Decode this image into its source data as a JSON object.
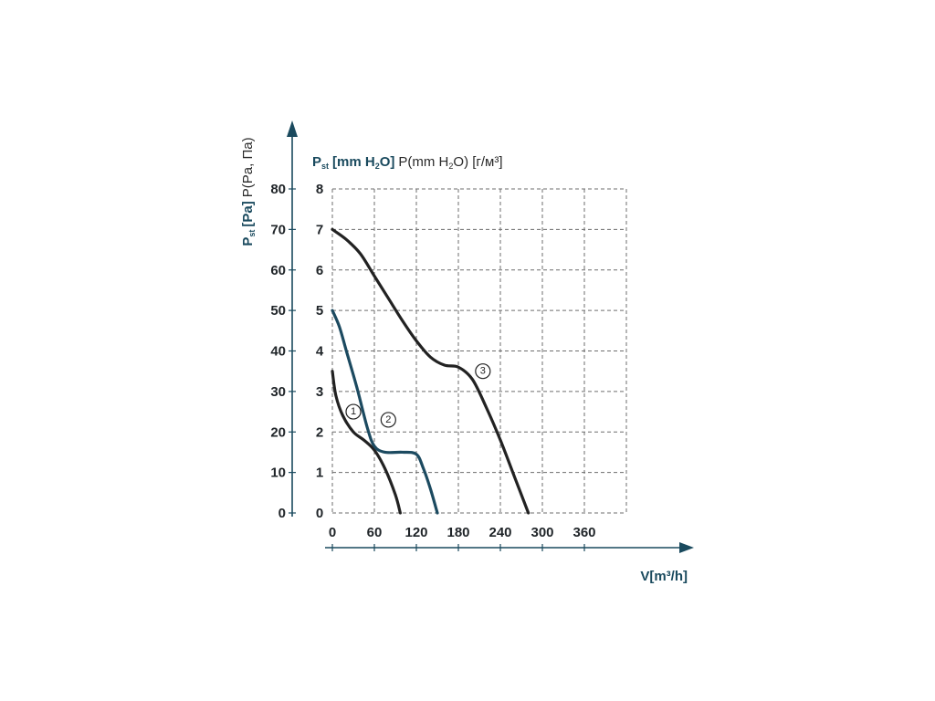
{
  "chart_data": {
    "type": "line",
    "xlabel": "V[m³/h]",
    "ylabel_left_main": "P",
    "ylabel_left_sub": "st",
    "ylabel_left_unit": "[Pa]",
    "ylabel_left_extra": "P(Pa, Па)",
    "ylabel_right_main": "P",
    "ylabel_right_sub": "st",
    "ylabel_right_unit_a": "[mm H",
    "ylabel_right_unit_sub": "2",
    "ylabel_right_unit_b": "O]",
    "ylabel_right_extra_a": "P(mm H",
    "ylabel_right_extra_sub": "2",
    "ylabel_right_extra_b": "O) [г/м³]",
    "xlim": [
      0,
      420
    ],
    "ylim_mm": [
      0,
      8
    ],
    "ylim_pa": [
      0,
      80
    ],
    "x_ticks": [
      "0",
      "60",
      "120",
      "180",
      "240",
      "300",
      "360"
    ],
    "y_ticks_pa": [
      "0",
      "10",
      "20",
      "30",
      "40",
      "50",
      "60",
      "70",
      "80"
    ],
    "y_ticks_mm": [
      "0",
      "1",
      "2",
      "3",
      "4",
      "5",
      "6",
      "7",
      "8"
    ],
    "grid": true,
    "colors": {
      "axis": "#1a4a5e",
      "curve_dark": "#222222",
      "curve_blue": "#1c4a60"
    },
    "series": [
      {
        "name": "1",
        "color": "#222222",
        "x": [
          0,
          5,
          15,
          30,
          45,
          60,
          75,
          90,
          97
        ],
        "y": [
          3.5,
          2.9,
          2.4,
          2.0,
          1.8,
          1.55,
          1.1,
          0.45,
          0
        ],
        "marker_at": [
          30,
          2.5
        ]
      },
      {
        "name": "2",
        "color": "#1c4a60",
        "x": [
          0,
          10,
          20,
          35,
          50,
          60,
          75,
          100,
          120,
          130,
          140,
          150
        ],
        "y": [
          5.0,
          4.6,
          4.0,
          3.1,
          2.1,
          1.65,
          1.5,
          1.5,
          1.45,
          1.1,
          0.6,
          0
        ],
        "marker_at": [
          80,
          2.3
        ]
      },
      {
        "name": "3",
        "color": "#222222",
        "x": [
          0,
          20,
          40,
          60,
          80,
          100,
          120,
          140,
          160,
          180,
          200,
          220,
          240,
          260,
          280
        ],
        "y": [
          7.0,
          6.75,
          6.4,
          5.85,
          5.3,
          4.75,
          4.25,
          3.85,
          3.65,
          3.6,
          3.3,
          2.6,
          1.8,
          0.9,
          0
        ],
        "marker_at": [
          215,
          3.5
        ]
      }
    ]
  }
}
